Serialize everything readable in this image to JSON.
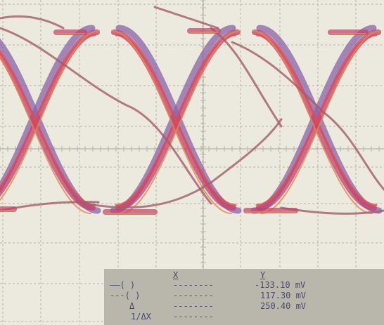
{
  "screen": {
    "background": "#ece9df",
    "grid_color": "#b7b4aa",
    "trace_colors": [
      "#8a63a8",
      "#c2406a",
      "#e24b52",
      "#a25e6a",
      "#e08a4e"
    ]
  },
  "readout": {
    "header_x": "X",
    "header_y": "Y",
    "rows": [
      {
        "marker": "——( )",
        "x": "--------",
        "y": "-133.10 mV"
      },
      {
        "marker": "---( )",
        "x": "--------",
        "y": "117.30 mV"
      },
      {
        "marker": "Δ",
        "x": "--------",
        "y": "250.40 mV"
      },
      {
        "marker": "1/ΔX",
        "x": "--------",
        "y": ""
      }
    ]
  }
}
